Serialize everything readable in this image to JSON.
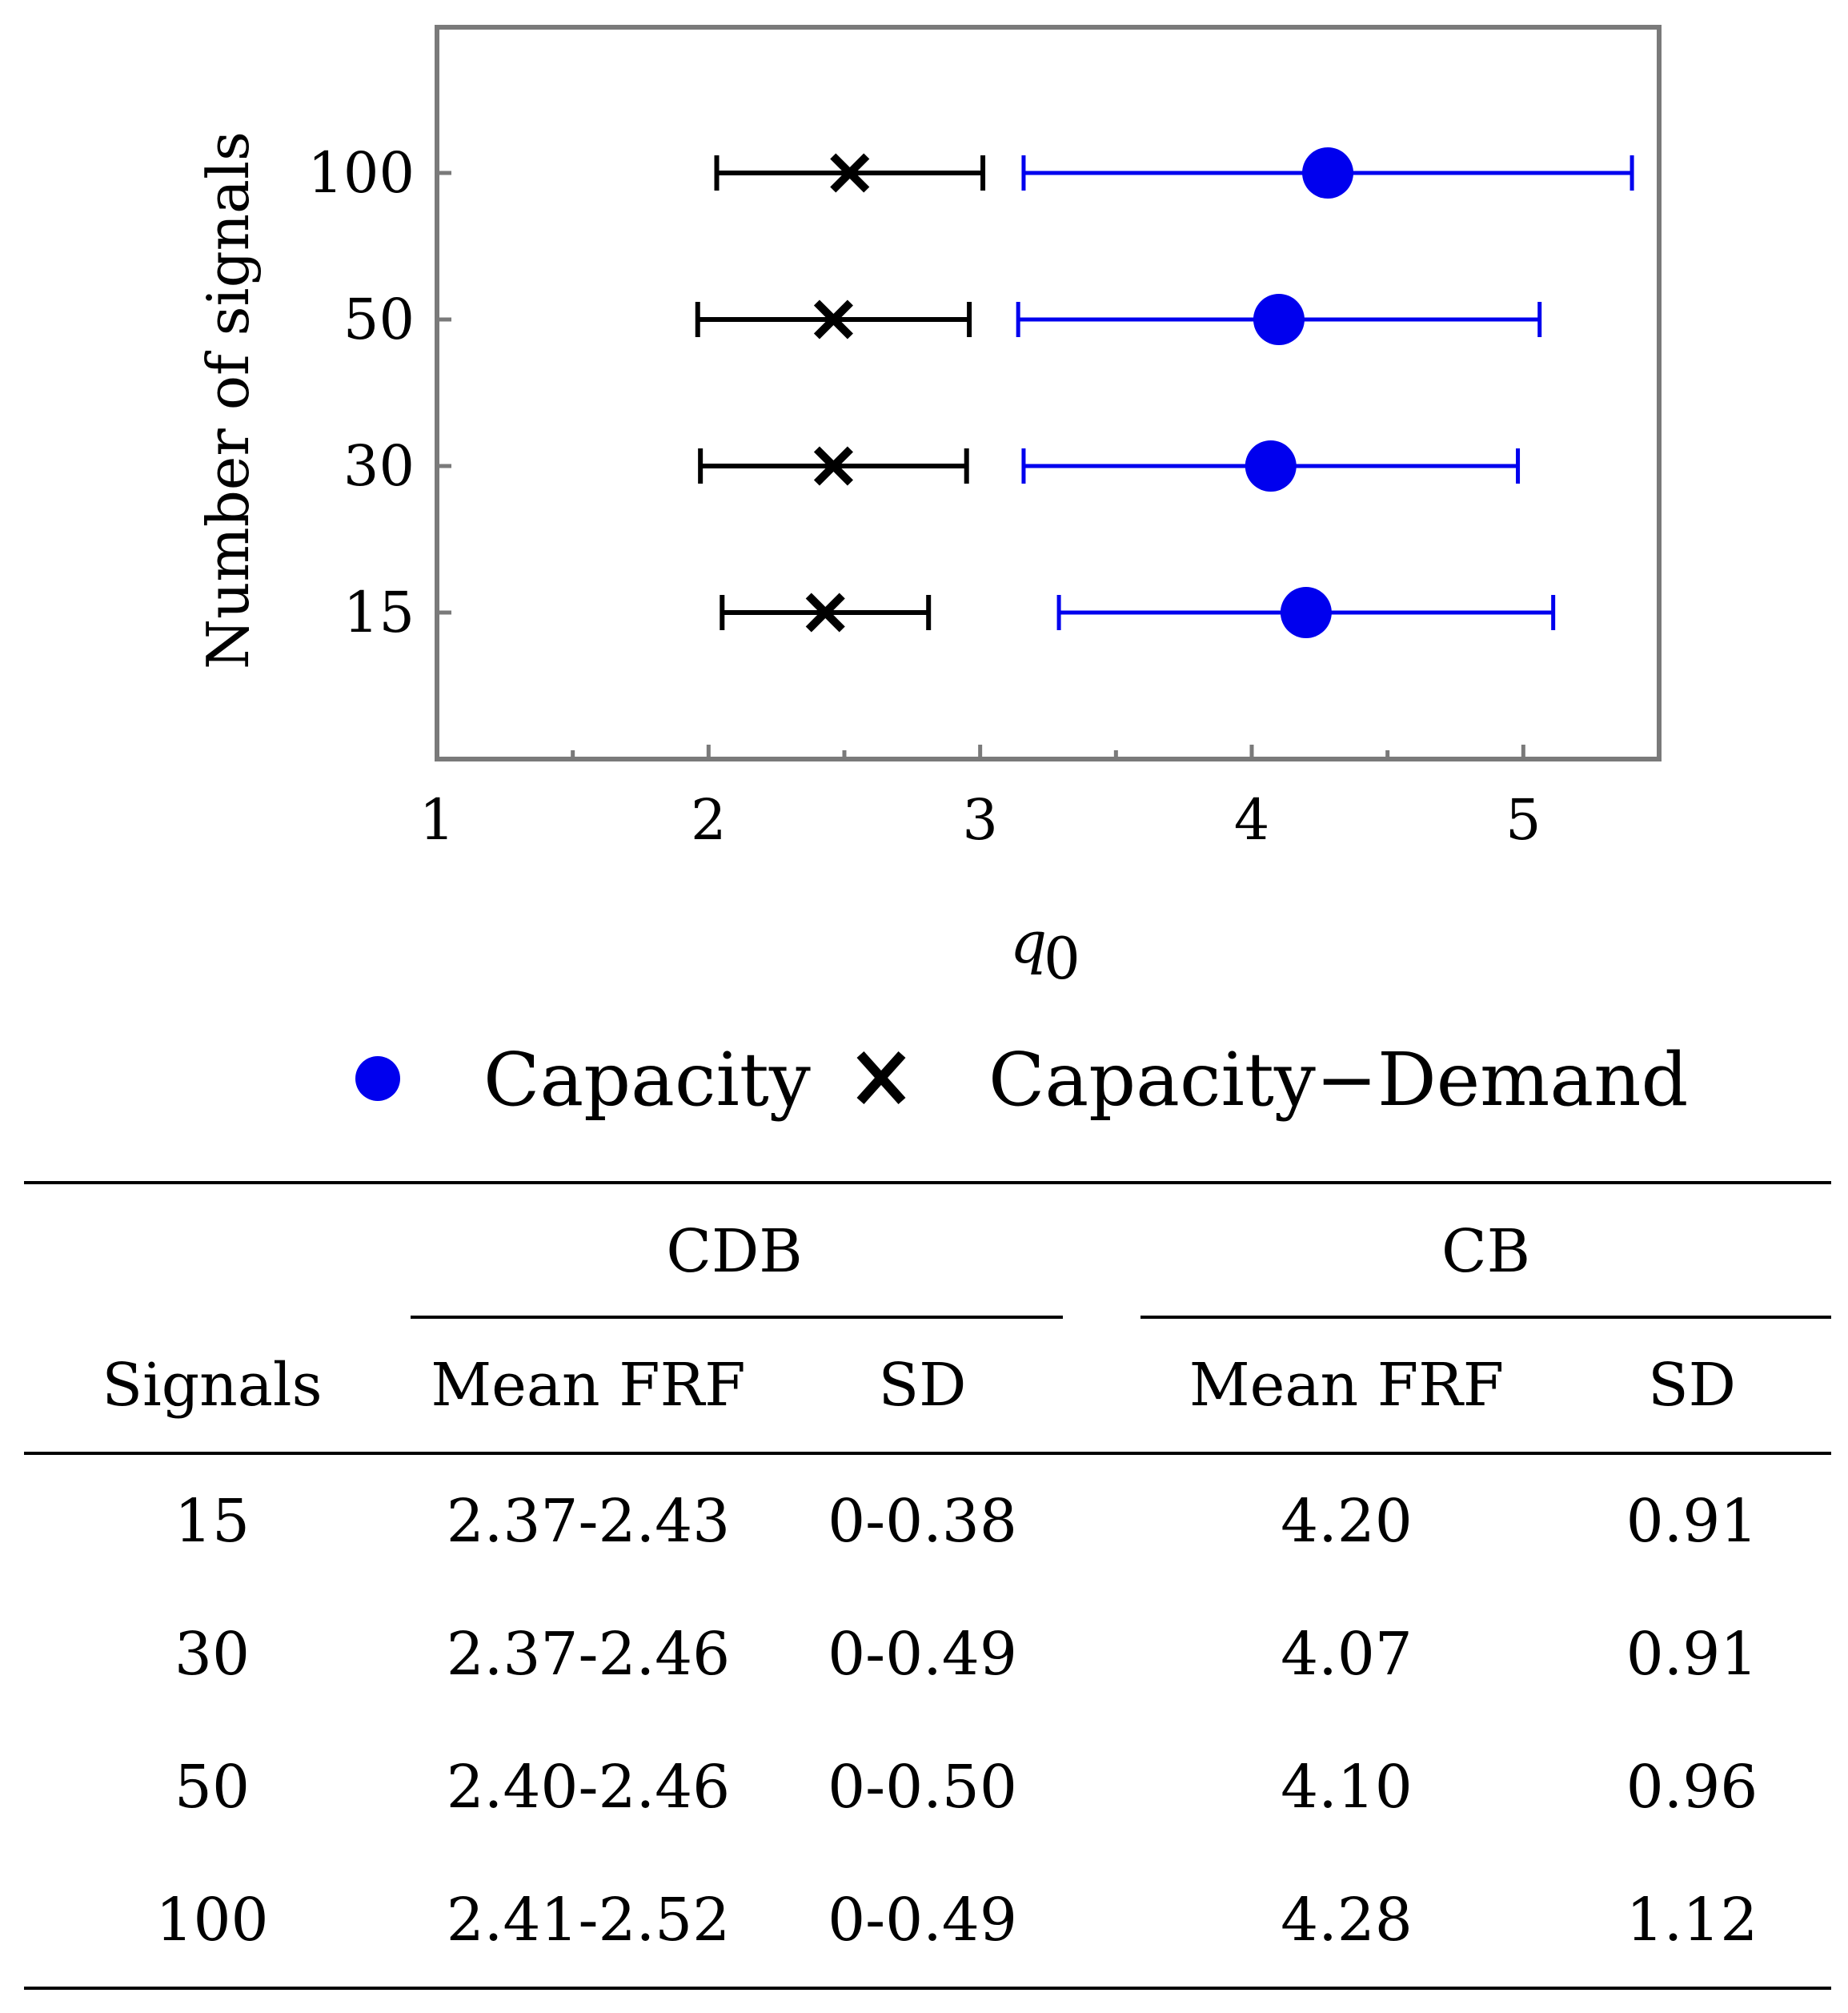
{
  "chart_data": {
    "type": "errorbar-dot",
    "xlabel": "q",
    "xlabel_subscript": "0",
    "ylabel": "Number of signals",
    "xlim": [
      1,
      5.5
    ],
    "x_ticks": [
      1,
      2,
      3,
      4,
      5
    ],
    "y_categories": [
      "15",
      "30",
      "50",
      "100"
    ],
    "legend": [
      {
        "name": "Capacity",
        "marker": "circle",
        "color": "#0000ee"
      },
      {
        "name": "Capacity−Demand",
        "marker": "cross",
        "color": "#000000"
      }
    ],
    "series": [
      {
        "name": "Capacity",
        "color": "#0000ee",
        "points": [
          {
            "category": "15",
            "value": 4.2,
            "low": 3.29,
            "high": 5.11
          },
          {
            "category": "30",
            "value": 4.07,
            "low": 3.16,
            "high": 4.98
          },
          {
            "category": "50",
            "value": 4.1,
            "low": 3.14,
            "high": 5.06
          },
          {
            "category": "100",
            "value": 4.28,
            "low": 3.16,
            "high": 5.4
          }
        ]
      },
      {
        "name": "Capacity−Demand",
        "color": "#000000",
        "points": [
          {
            "category": "15",
            "value": 2.43,
            "low": 2.05,
            "high": 2.81
          },
          {
            "category": "30",
            "value": 2.46,
            "low": 1.97,
            "high": 2.95
          },
          {
            "category": "50",
            "value": 2.46,
            "low": 1.96,
            "high": 2.96
          },
          {
            "category": "100",
            "value": 2.52,
            "low": 2.03,
            "high": 3.01
          }
        ]
      }
    ]
  },
  "table": {
    "group_cdb": "CDB",
    "group_cb": "CB",
    "col_signals": "Signals",
    "col_mean_frf_1": "Mean FRF",
    "col_sd_1": "SD",
    "col_mean_frf_2": "Mean FRF",
    "col_sd_2": "SD",
    "rows": [
      {
        "signals": "15",
        "cdb_mean": "2.37-2.43",
        "cdb_sd": "0-0.38",
        "cb_mean": "4.20",
        "cb_sd": "0.91"
      },
      {
        "signals": "30",
        "cdb_mean": "2.37-2.46",
        "cdb_sd": "0-0.49",
        "cb_mean": "4.07",
        "cb_sd": "0.91"
      },
      {
        "signals": "50",
        "cdb_mean": "2.40-2.46",
        "cdb_sd": "0-0.50",
        "cb_mean": "4.10",
        "cb_sd": "0.96"
      },
      {
        "signals": "100",
        "cdb_mean": "2.41-2.52",
        "cdb_sd": "0-0.49",
        "cb_mean": "4.28",
        "cb_sd": "1.12"
      }
    ]
  }
}
